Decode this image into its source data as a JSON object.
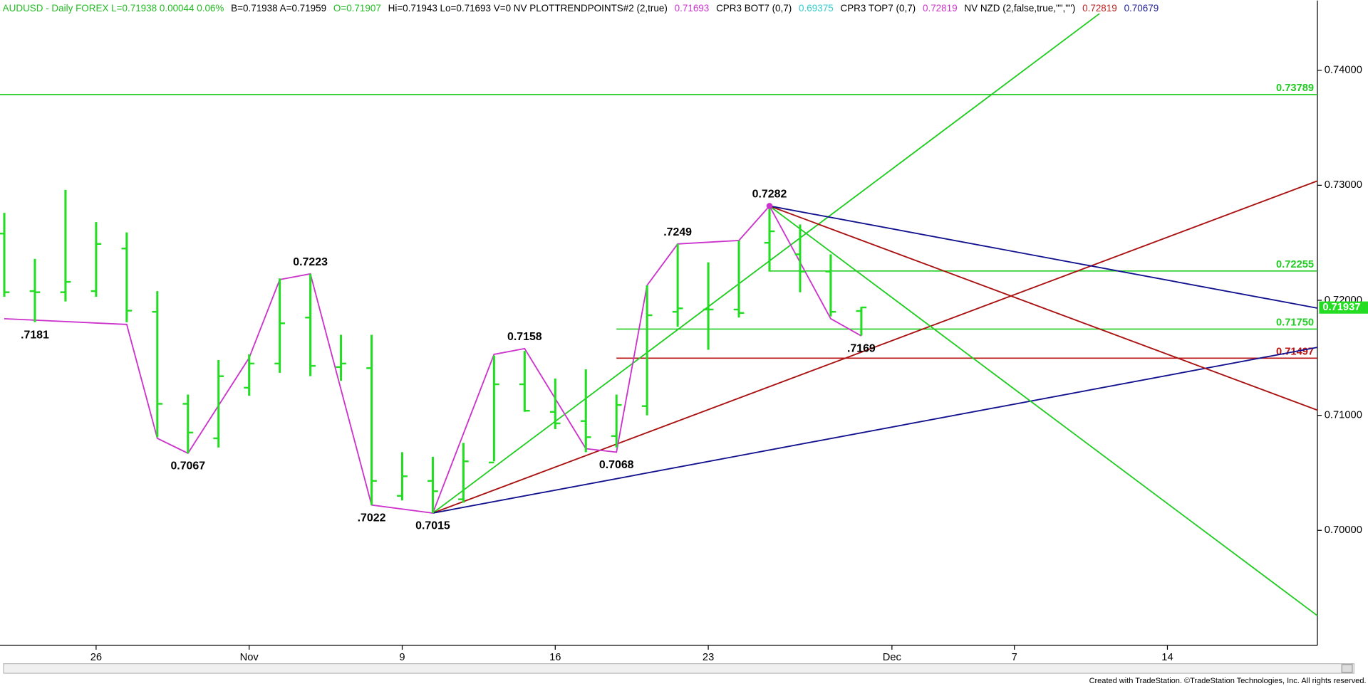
{
  "chart_data": {
    "type": "ohlc",
    "header": [
      {
        "text": "AUDUSD - Daily  FOREX  L=0.71938  0.00044  0.06%",
        "color": "#22bb22"
      },
      {
        "text": "B=0.71938  A=0.71959",
        "color": "#000000"
      },
      {
        "text": "O=0.71907",
        "color": "#22bb22"
      },
      {
        "text": "Hi=0.71943  Lo=0.71693  V=0  NV  PLOTTRENDPOINTS#2 (2,true)",
        "color": "#000000"
      },
      {
        "text": "0.71693",
        "color": "#cc33cc"
      },
      {
        "text": "CPR3 BOT7 (0,7)",
        "color": "#000000"
      },
      {
        "text": "0.69375",
        "color": "#33cccc"
      },
      {
        "text": "CPR3 TOP7 (0,7)",
        "color": "#000000"
      },
      {
        "text": "0.72819",
        "color": "#cc33cc"
      },
      {
        "text": "NV NZD (2,false,true,\"\",\"\")",
        "color": "#000000"
      },
      {
        "text": "0.72819",
        "color": "#bb2222"
      },
      {
        "text": "0.70679",
        "color": "#222299"
      }
    ],
    "footer": "Created with TradeStation. ©TradeStation Technologies, Inc. All rights reserved.",
    "color": "#22dd22",
    "x": [
      0,
      1,
      2,
      3,
      4,
      5,
      6,
      7,
      8,
      9,
      10,
      11,
      12,
      13,
      14,
      15,
      16,
      17,
      18,
      19,
      20,
      21,
      22,
      23,
      24,
      25,
      26,
      27,
      28
    ],
    "open": [
      0.7258,
      0.7208,
      0.7207,
      0.7208,
      0.7245,
      0.719,
      0.711,
      0.708,
      0.7124,
      0.7145,
      0.7185,
      0.7142,
      0.7141,
      0.703,
      0.7043,
      0.7027,
      0.7059,
      0.7127,
      0.7103,
      0.7095,
      0.7082,
      0.7108,
      0.719,
      0.7192,
      0.7192,
      0.725,
      0.724,
      0.7225,
      0.71907
    ],
    "high": [
      0.7276,
      0.7236,
      0.7296,
      0.7268,
      0.7259,
      0.7208,
      0.7118,
      0.7148,
      0.7153,
      0.7219,
      0.7223,
      0.717,
      0.717,
      0.7068,
      0.7064,
      0.7076,
      0.7152,
      0.7156,
      0.7132,
      0.714,
      0.7118,
      0.7213,
      0.7249,
      0.7233,
      0.7252,
      0.7282,
      0.7266,
      0.724,
      0.71943
    ],
    "low": [
      0.7203,
      0.7181,
      0.7199,
      0.7203,
      0.7181,
      0.7081,
      0.7067,
      0.7072,
      0.7117,
      0.7137,
      0.7134,
      0.713,
      0.7022,
      0.7026,
      0.7015,
      0.7024,
      0.706,
      0.7103,
      0.7088,
      0.7068,
      0.7072,
      0.71,
      0.7177,
      0.7157,
      0.7185,
      0.7225,
      0.7207,
      0.7186,
      0.71693
    ],
    "close": [
      0.7207,
      0.7207,
      0.7216,
      0.7249,
      0.7191,
      0.711,
      0.7085,
      0.7134,
      0.7145,
      0.718,
      0.7143,
      0.7145,
      0.7043,
      0.7047,
      0.7034,
      0.706,
      0.7127,
      0.7104,
      0.7093,
      0.7081,
      0.7109,
      0.7187,
      0.7193,
      0.7192,
      0.7189,
      0.726,
      0.7225,
      0.719,
      0.71938
    ],
    "swing": {
      "color": "#cc33cc",
      "x": [
        0,
        4,
        5,
        6,
        8,
        9,
        10,
        12,
        14,
        16,
        17,
        19,
        20,
        21,
        22,
        24,
        25,
        27,
        28
      ],
      "values": [
        0.7184,
        0.7179,
        0.708,
        0.7067,
        0.715,
        0.7218,
        0.7223,
        0.7022,
        0.7015,
        0.7153,
        0.7158,
        0.7071,
        0.7068,
        0.7213,
        0.7249,
        0.7252,
        0.7282,
        0.7184,
        0.7169
      ]
    },
    "annotations": [
      {
        "label": ".7181",
        "x": 1,
        "value": 0.7181,
        "side": "below"
      },
      {
        "label": "0.7067",
        "x": 6,
        "value": 0.7067,
        "side": "below"
      },
      {
        "label": "0.7223",
        "x": 10,
        "value": 0.7223,
        "side": "above"
      },
      {
        "label": ".7022",
        "x": 12,
        "value": 0.7022,
        "side": "below"
      },
      {
        "label": "0.7015",
        "x": 14,
        "value": 0.7015,
        "side": "below"
      },
      {
        "label": "0.7158",
        "x": 17,
        "value": 0.7158,
        "side": "above"
      },
      {
        "label": "0.7068",
        "x": 20,
        "value": 0.7068,
        "side": "below"
      },
      {
        "label": ".7249",
        "x": 22,
        "value": 0.7249,
        "side": "above"
      },
      {
        "label": "0.7282",
        "x": 25,
        "value": 0.7282,
        "side": "above"
      },
      {
        "label": ".7169",
        "x": 28,
        "value": 0.7169,
        "side": "below"
      }
    ],
    "trend_lines": [
      {
        "color": "#22cc22",
        "x": [
          14,
          35.78
        ],
        "values": [
          0.7015,
          0.74492
        ]
      },
      {
        "color": "#aa1111",
        "x": [
          14,
          42.9
        ],
        "values": [
          0.7015,
          0.73038
        ]
      },
      {
        "color": "#11118f",
        "x": [
          14,
          42.9
        ],
        "values": [
          0.7015,
          0.71591
        ]
      },
      {
        "color": "#22cc22",
        "x": [
          25,
          42.9
        ],
        "values": [
          0.7282,
          0.69258
        ]
      },
      {
        "color": "#aa1111",
        "x": [
          25,
          42.9
        ],
        "values": [
          0.7282,
          0.71045
        ]
      },
      {
        "color": "#11118f",
        "x": [
          25,
          42.9
        ],
        "values": [
          0.7282,
          0.71932
        ]
      }
    ],
    "levels": [
      {
        "value": 0.73789,
        "label": "0.73789",
        "from": -0.14,
        "color": "#22cc22"
      },
      {
        "value": 0.72255,
        "label": "0.72255",
        "from": 25,
        "color": "#22cc22"
      },
      {
        "value": 0.7175,
        "label": "0.71750",
        "from": 20,
        "color": "#22cc22"
      },
      {
        "value": 0.71497,
        "label": "0.71497",
        "from": 20,
        "color": "#bb1111"
      }
    ],
    "last_price": {
      "value": 0.71937,
      "label": "0.71937"
    },
    "xlim": [
      -0.14,
      42.9
    ],
    "xticks": [
      {
        "value": 3,
        "label": "26"
      },
      {
        "value": 8,
        "label": "Nov"
      },
      {
        "value": 13,
        "label": "9"
      },
      {
        "value": 18,
        "label": "16"
      },
      {
        "value": 23,
        "label": "23"
      },
      {
        "value": 29,
        "label": "Dec"
      },
      {
        "value": 33,
        "label": "7"
      },
      {
        "value": 38,
        "label": "14"
      }
    ],
    "ylim": [
      0.69,
      0.74606
    ],
    "yticks": [
      {
        "value": 0.7,
        "label": "0.70000"
      },
      {
        "value": 0.71,
        "label": "0.71000"
      },
      {
        "value": 0.72,
        "label": "0.72000"
      },
      {
        "value": 0.73,
        "label": "0.73000"
      },
      {
        "value": 0.74,
        "label": "0.74000"
      }
    ]
  }
}
